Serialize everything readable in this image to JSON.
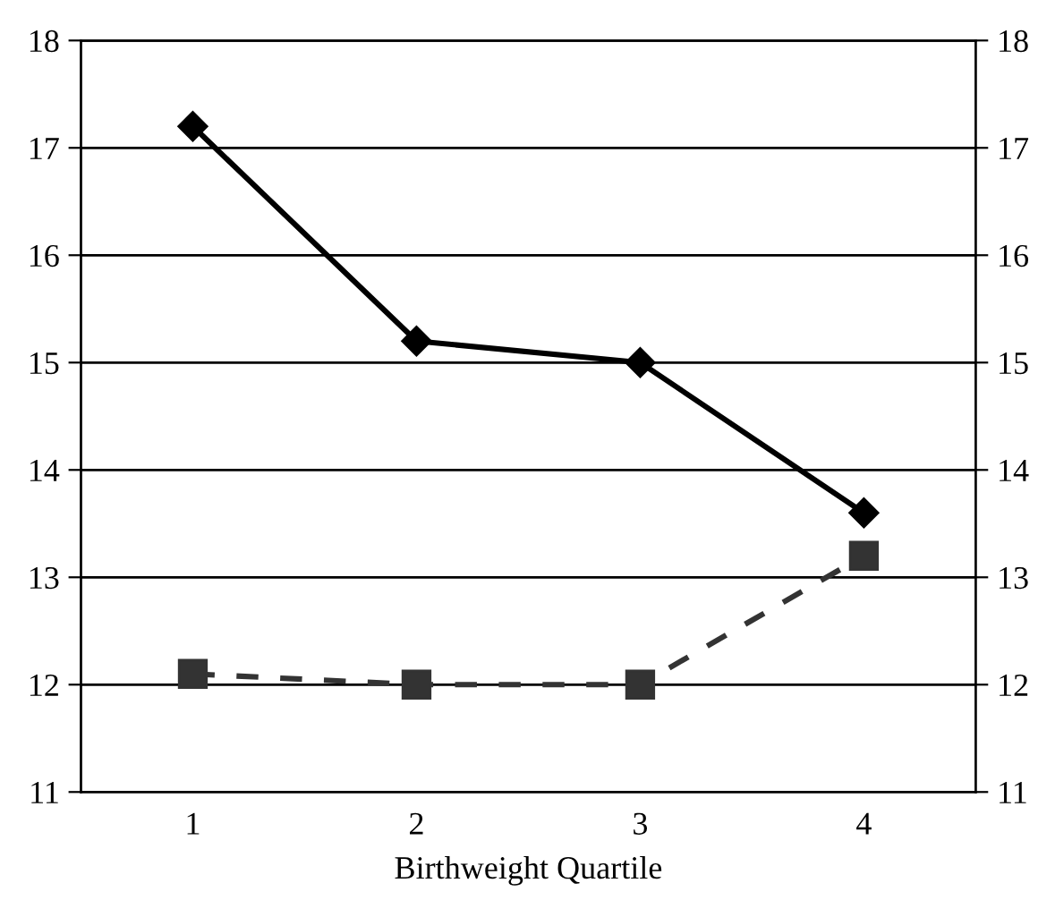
{
  "chart_data": {
    "type": "line",
    "xlabel": "Birthweight Quartile",
    "categories": [
      "1",
      "2",
      "3",
      "4"
    ],
    "series": [
      {
        "color": "#000000",
        "values": [
          17.2,
          15.2,
          15.0,
          13.6
        ],
        "marker": "diamond",
        "line_style": "solid"
      },
      {
        "color": "#333333",
        "values": [
          12.1,
          12.0,
          12.0,
          13.2
        ],
        "marker": "square",
        "line_style": "dashed"
      }
    ],
    "ylim": [
      11,
      18
    ],
    "yticks": [
      11,
      12,
      13,
      14,
      15,
      16,
      17,
      18
    ],
    "y2lim": [
      11,
      18
    ],
    "y2ticks": [
      11,
      12,
      13,
      14,
      15,
      16,
      17,
      18
    ],
    "grid": "y",
    "legend": false
  }
}
